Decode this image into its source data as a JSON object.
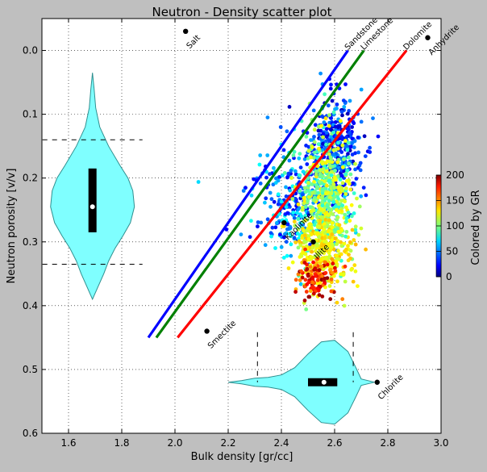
{
  "chart_data": {
    "type": "scatter",
    "title": "Neutron - Density scatter plot",
    "xlabel": "Bulk density [gr/cc]",
    "ylabel": "Neutron porosity [v/v]",
    "xlim": [
      1.5,
      3.0
    ],
    "ylim": [
      0.6,
      -0.05
    ],
    "y_inverted": true,
    "grid": true,
    "x_ticks": [
      "1.6",
      "1.8",
      "2.0",
      "2.2",
      "2.4",
      "2.6",
      "2.8",
      "3.0"
    ],
    "y_ticks": [
      "0.0",
      "0.1",
      "0.2",
      "0.3",
      "0.4",
      "0.5",
      "0.6"
    ],
    "lithology_lines": [
      {
        "name": "Sandstone",
        "color": "#0000ff",
        "x": [
          1.9,
          2.65
        ],
        "y": [
          0.45,
          0.0
        ]
      },
      {
        "name": "Limestone",
        "color": "#008000",
        "x": [
          1.93,
          2.71
        ],
        "y": [
          0.45,
          0.0
        ]
      },
      {
        "name": "Dolomite",
        "color": "#ff0000",
        "x": [
          2.01,
          2.87
        ],
        "y": [
          0.45,
          0.0
        ]
      }
    ],
    "minerals": [
      {
        "name": "Salt",
        "x": 2.04,
        "y": -0.03
      },
      {
        "name": "Anhydrite",
        "x": 2.95,
        "y": -0.02
      },
      {
        "name": "Smectite",
        "x": 2.12,
        "y": 0.44
      },
      {
        "name": "Kaolinite",
        "x": 2.41,
        "y": 0.27
      },
      {
        "name": "Illite",
        "x": 2.52,
        "y": 0.3
      },
      {
        "name": "Chlorite",
        "x": 2.76,
        "y": 0.52
      }
    ],
    "point_cloud": {
      "description_colorby": "GR",
      "clusters": [
        {
          "cx": 2.6,
          "cy": 0.15,
          "sx": 0.05,
          "sy": 0.04,
          "gr": [
            10,
            60
          ],
          "n": 330
        },
        {
          "cx": 2.45,
          "cy": 0.24,
          "sx": 0.09,
          "sy": 0.04,
          "gr": [
            20,
            80
          ],
          "n": 330
        },
        {
          "cx": 2.57,
          "cy": 0.23,
          "sx": 0.05,
          "sy": 0.05,
          "gr": [
            80,
            130
          ],
          "n": 500
        },
        {
          "cx": 2.56,
          "cy": 0.31,
          "sx": 0.05,
          "sy": 0.03,
          "gr": [
            110,
            140
          ],
          "n": 280
        },
        {
          "cx": 2.53,
          "cy": 0.355,
          "sx": 0.04,
          "sy": 0.02,
          "gr": [
            140,
            200
          ],
          "n": 110
        }
      ]
    },
    "colorbar": {
      "label": "Colored by GR",
      "min": 0,
      "max": 200,
      "ticks": [
        "0",
        "50",
        "100",
        "150",
        "200"
      ]
    },
    "violin_y": {
      "median": 0.245,
      "q1": 0.185,
      "q3": 0.285,
      "min": 0.035,
      "max": 0.39,
      "whisker_low": 0.14,
      "whisker_high": 0.335,
      "x_center": 1.69,
      "color": "#7fffff"
    },
    "violin_x": {
      "median": 2.56,
      "q1": 2.5,
      "q3": 2.61,
      "min": 2.2,
      "max": 2.75,
      "whisker_low": 2.31,
      "whisker_high": 2.67,
      "y_center": 0.52,
      "color": "#7fffff"
    }
  }
}
